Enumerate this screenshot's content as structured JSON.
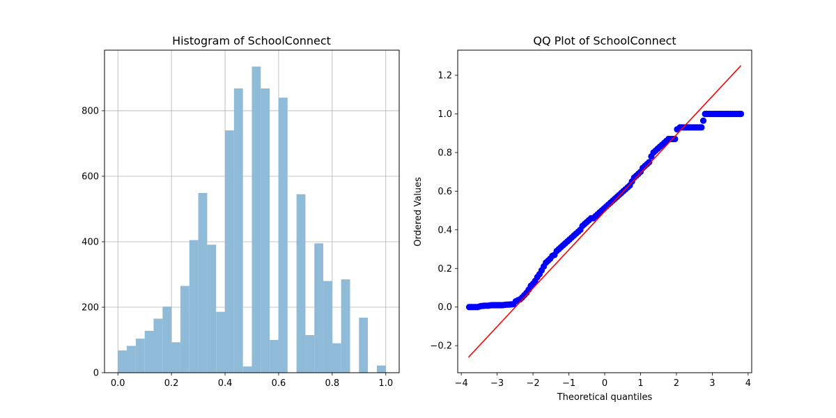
{
  "chart_data": [
    {
      "type": "bar",
      "subtype": "histogram",
      "title": "Histogram of SchoolConnect",
      "xlabel": "",
      "ylabel": "",
      "xlim": [
        -0.05,
        1.05
      ],
      "ylim": [
        0,
        985
      ],
      "xticks": [
        "0.0",
        "0.2",
        "0.4",
        "0.6",
        "0.8",
        "1.0"
      ],
      "yticks": [
        "0",
        "200",
        "400",
        "600",
        "800"
      ],
      "grid": true,
      "color": "#8fbbd9",
      "bin_width": 0.03333,
      "bin_starts": [
        0.0,
        0.0333,
        0.0667,
        0.1,
        0.1333,
        0.1667,
        0.2,
        0.2333,
        0.2667,
        0.3,
        0.3333,
        0.3667,
        0.4,
        0.4333,
        0.4667,
        0.5,
        0.5333,
        0.5667,
        0.6,
        0.6333,
        0.6667,
        0.7,
        0.7333,
        0.7667,
        0.8,
        0.8333,
        0.8667,
        0.9,
        0.9333,
        0.9667
      ],
      "values": [
        68,
        82,
        104,
        128,
        165,
        202,
        93,
        265,
        405,
        549,
        391,
        186,
        740,
        868,
        19,
        935,
        868,
        100,
        840,
        0,
        545,
        115,
        395,
        280,
        90,
        285,
        0,
        168,
        0,
        22
      ]
    },
    {
      "type": "scatter",
      "subtype": "qq-plot",
      "title": "QQ Plot of SchoolConnect",
      "xlabel": "Theoretical quantiles",
      "ylabel": "Ordered Values",
      "xlim": [
        -4.1,
        4.1
      ],
      "ylim": [
        -0.34,
        1.33
      ],
      "xticks": [
        "−4",
        "−3",
        "−2",
        "−1",
        "0",
        "1",
        "2",
        "3",
        "4"
      ],
      "yticks": [
        "−0.2",
        "0.0",
        "0.2",
        "0.4",
        "0.6",
        "0.8",
        "1.0",
        "1.2"
      ],
      "grid": false,
      "point_color": "#0000ff",
      "line_color": "#ff0000",
      "fit_line": {
        "x": [
          -3.8,
          3.8
        ],
        "y": [
          -0.26,
          1.25
        ]
      },
      "x": [
        -3.78,
        -3.55,
        -3.45,
        -3.35,
        -3.25,
        -3.15,
        -3.05,
        -2.95,
        -2.85,
        -2.75,
        -2.65,
        -2.55,
        -2.48,
        -2.42,
        -2.36,
        -2.3,
        -2.24,
        -2.18,
        -2.12,
        -2.06,
        -2.0,
        -1.94,
        -1.88,
        -1.82,
        -1.76,
        -1.7,
        -1.64,
        -1.58,
        -1.52,
        -1.46,
        -1.4,
        -1.34,
        -1.28,
        -1.22,
        -1.16,
        -1.1,
        -1.04,
        -0.98,
        -0.92,
        -0.86,
        -0.8,
        -0.74,
        -0.68,
        -0.62,
        -0.56,
        -0.5,
        -0.44,
        -0.38,
        -0.32,
        -0.26,
        -0.2,
        -0.14,
        -0.08,
        -0.02,
        0.04,
        0.1,
        0.16,
        0.22,
        0.28,
        0.34,
        0.4,
        0.46,
        0.52,
        0.58,
        0.64,
        0.7,
        0.76,
        0.82,
        0.88,
        0.94,
        1.0,
        1.06,
        1.12,
        1.18,
        1.24,
        1.3,
        1.36,
        1.42,
        1.48,
        1.54,
        1.6,
        1.66,
        1.72,
        1.78,
        1.84,
        1.9,
        1.96,
        2.02,
        2.1,
        2.2,
        2.3,
        2.4,
        2.5,
        2.6,
        2.7,
        2.8,
        2.9,
        3.0,
        3.1,
        3.2,
        3.3,
        3.4,
        3.5,
        3.8
      ],
      "y": [
        0.0,
        0.0,
        0.005,
        0.007,
        0.007,
        0.01,
        0.01,
        0.01,
        0.01,
        0.012,
        0.013,
        0.015,
        0.03,
        0.035,
        0.04,
        0.05,
        0.062,
        0.074,
        0.09,
        0.11,
        0.12,
        0.135,
        0.155,
        0.17,
        0.19,
        0.21,
        0.23,
        0.24,
        0.25,
        0.265,
        0.27,
        0.29,
        0.3,
        0.31,
        0.32,
        0.33,
        0.34,
        0.35,
        0.36,
        0.37,
        0.38,
        0.39,
        0.4,
        0.42,
        0.43,
        0.44,
        0.45,
        0.46,
        0.46,
        0.47,
        0.48,
        0.49,
        0.5,
        0.51,
        0.52,
        0.53,
        0.54,
        0.55,
        0.56,
        0.57,
        0.58,
        0.59,
        0.6,
        0.61,
        0.62,
        0.63,
        0.65,
        0.67,
        0.68,
        0.69,
        0.7,
        0.72,
        0.73,
        0.74,
        0.75,
        0.78,
        0.8,
        0.81,
        0.82,
        0.83,
        0.84,
        0.85,
        0.86,
        0.87,
        0.87,
        0.87,
        0.87,
        0.92,
        0.93,
        0.93,
        0.93,
        0.93,
        0.93,
        0.93,
        0.93,
        1.0,
        1.0,
        1.0,
        1.0,
        1.0,
        1.0,
        1.0,
        1.0,
        1.0
      ]
    }
  ]
}
